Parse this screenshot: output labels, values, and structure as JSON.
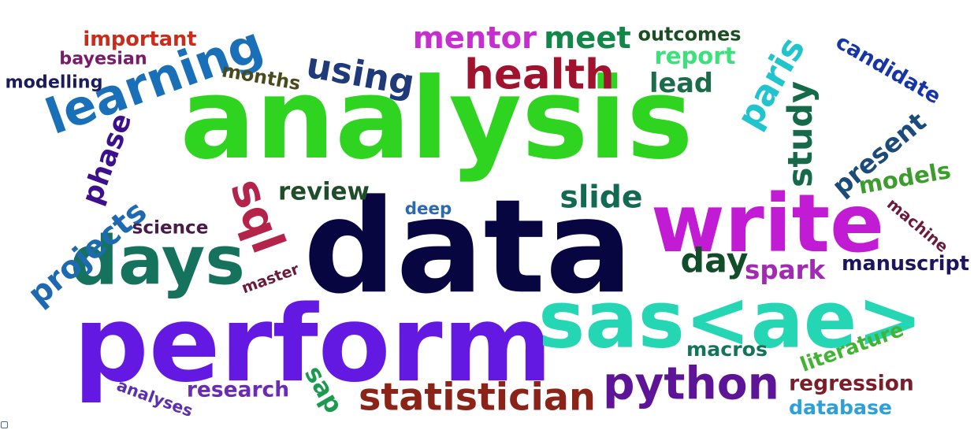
{
  "words": [
    {
      "text": "analysis",
      "color": "#2ed41f",
      "rotate": 0
    },
    {
      "text": "data",
      "color": "#080640",
      "rotate": 0
    },
    {
      "text": "perform",
      "color": "#6419e3",
      "rotate": 0
    },
    {
      "text": "write",
      "color": "#c11bd3",
      "rotate": 0
    },
    {
      "text": "sas<ae>",
      "color": "#24d6b4",
      "rotate": 0
    },
    {
      "text": "health",
      "color": "#a0122e",
      "rotate": 0
    },
    {
      "text": "study",
      "color": "#156a4a",
      "rotate": -90
    },
    {
      "text": "days",
      "color": "#15725c",
      "rotate": 0
    },
    {
      "text": "learning",
      "color": "#1a6fb9",
      "rotate": -20
    },
    {
      "text": "sql",
      "color": "#b3234a",
      "rotate": 70
    },
    {
      "text": "python",
      "color": "#5e1496",
      "rotate": 0
    },
    {
      "text": "statistician",
      "color": "#8c2318",
      "rotate": 0
    },
    {
      "text": "paris",
      "color": "#1fc4cc",
      "rotate": -60
    },
    {
      "text": "using",
      "color": "#1e3a7a",
      "rotate": 10
    },
    {
      "text": "mentor",
      "color": "#c62ecf",
      "rotate": 0
    },
    {
      "text": "projects",
      "color": "#1e6ab0",
      "rotate": -40
    },
    {
      "text": "phase",
      "color": "#3c0f8c",
      "rotate": -70
    },
    {
      "text": "day",
      "color": "#124d2a",
      "rotate": 0
    },
    {
      "text": "meet",
      "color": "#13874a",
      "rotate": 0
    },
    {
      "text": "slide",
      "color": "#136a52",
      "rotate": 0
    },
    {
      "text": "literature",
      "color": "#42b434",
      "rotate": -20
    },
    {
      "text": "present",
      "color": "#1b4b7a",
      "rotate": -40
    },
    {
      "text": "candidate",
      "color": "#1535a8",
      "rotate": 30
    },
    {
      "text": "report",
      "color": "#3be17a",
      "rotate": 0
    },
    {
      "text": "lead",
      "color": "#1c6c4c",
      "rotate": 0
    },
    {
      "text": "models",
      "color": "#3c9c2c",
      "rotate": -10
    },
    {
      "text": "months",
      "color": "#4a4a1c",
      "rotate": 10
    },
    {
      "text": "spark",
      "color": "#a22ab3",
      "rotate": 0
    },
    {
      "text": "review",
      "color": "#1f4d2a",
      "rotate": 0
    },
    {
      "text": "outcomes",
      "color": "#1d4d24",
      "rotate": 0
    },
    {
      "text": "important",
      "color": "#c92c1a",
      "rotate": 0
    },
    {
      "text": "regression",
      "color": "#7a1e2a",
      "rotate": 0
    },
    {
      "text": "manuscript",
      "color": "#1c1660",
      "rotate": 0
    },
    {
      "text": "research",
      "color": "#6b2bb5",
      "rotate": 0
    },
    {
      "text": "machine",
      "color": "#6b1a3c",
      "rotate": 40
    },
    {
      "text": "sap",
      "color": "#1c9a52",
      "rotate": 60
    },
    {
      "text": "macros",
      "color": "#15735a",
      "rotate": 0
    },
    {
      "text": "analyses",
      "color": "#5a2fb0",
      "rotate": 20
    },
    {
      "text": "database",
      "color": "#2ca0d8",
      "rotate": 0
    },
    {
      "text": "science",
      "color": "#4a1a4a",
      "rotate": 0
    },
    {
      "text": "bayesian",
      "color": "#7a1a6c",
      "rotate": 0
    },
    {
      "text": "modelling",
      "color": "#1c1c5a",
      "rotate": 0
    },
    {
      "text": "deep",
      "color": "#2a6ab0",
      "rotate": 0
    },
    {
      "text": "master",
      "color": "#6a1a3a",
      "rotate": -20
    }
  ]
}
